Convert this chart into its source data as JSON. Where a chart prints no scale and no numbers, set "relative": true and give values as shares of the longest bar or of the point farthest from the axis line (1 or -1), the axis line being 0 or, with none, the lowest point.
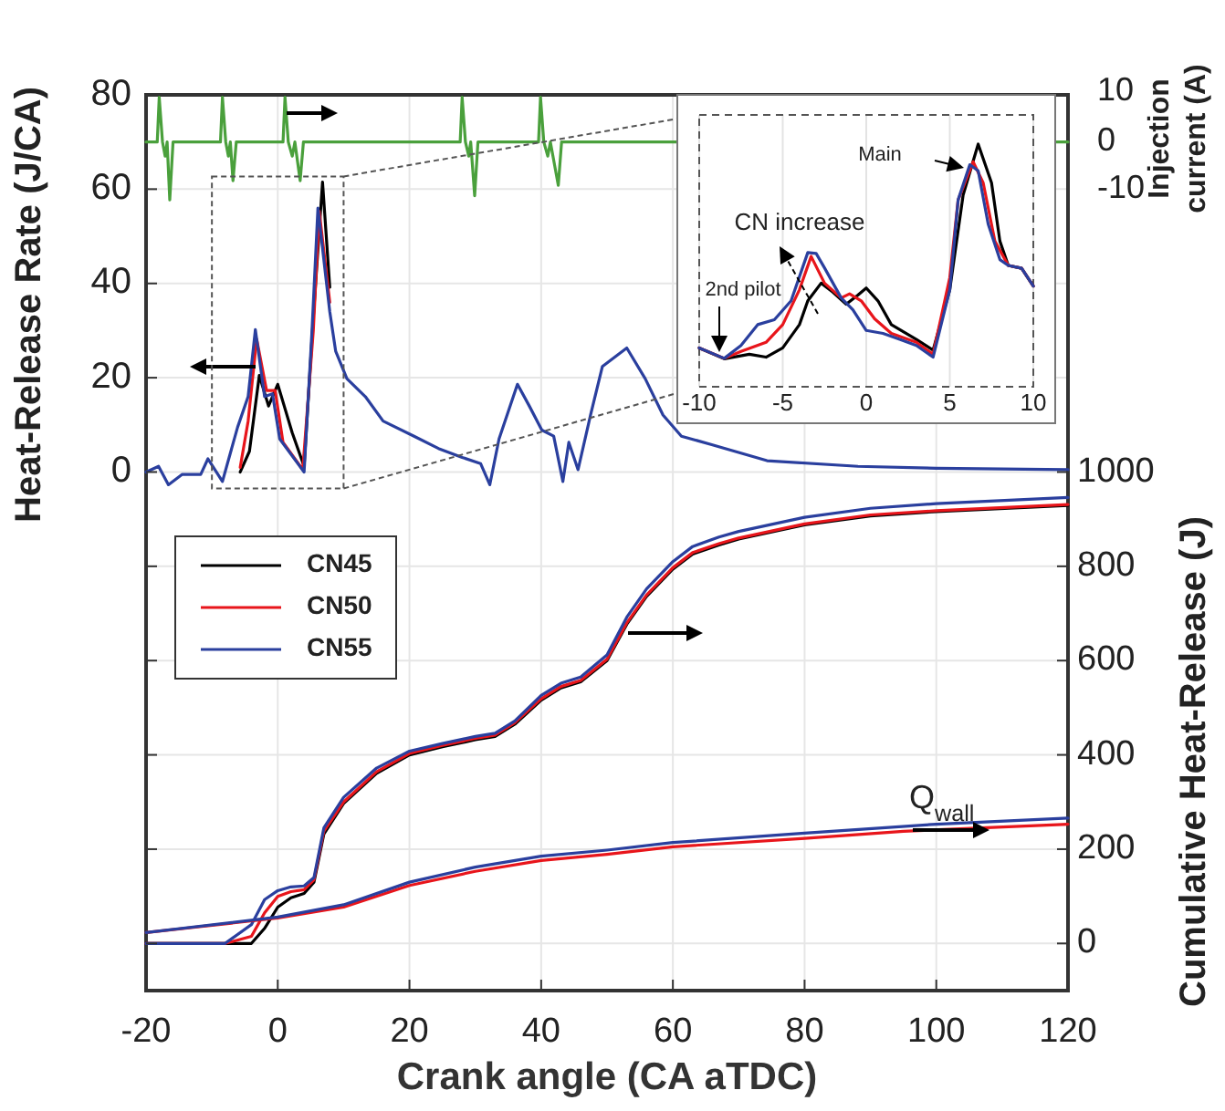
{
  "chart_data": [
    {
      "type": "line",
      "xlabel": "Crank angle (CA aTDC)",
      "ylabel": "Heat-Release Rate (J/CA)",
      "y2label": "Cumulative Heat-Release (J)",
      "y3label": "Injection current (A)",
      "xlim": [
        -20,
        120
      ],
      "xticks": [
        -20,
        0,
        20,
        40,
        60,
        80,
        100,
        120
      ],
      "ylim": [
        -110,
        80
      ],
      "yticks": [
        {
          "value": -100,
          "label": null
        },
        {
          "value": -80,
          "label": null
        },
        {
          "value": -60,
          "label": null
        },
        {
          "value": -40,
          "label": null
        },
        {
          "value": -20,
          "label": null
        },
        0,
        20,
        40,
        60,
        80
      ],
      "y2lim": [
        -100,
        1800
      ],
      "y2ticks": [
        0,
        200,
        400,
        600,
        800,
        1000
      ],
      "y3lim": [
        -180,
        10
      ],
      "y3ticks": [
        10,
        0,
        -10
      ],
      "grid": true,
      "legend": "left",
      "annotations": [
        "Q$_{wall}$"
      ],
      "series": [
        {
          "name": "CN45",
          "color": "#000000",
          "x": [
            -5.7,
            -4.3,
            -2.8,
            -1.4,
            0,
            2.2,
            4.0,
            5.4,
            6.8,
            7.9
          ],
          "values": [
            0,
            4.4,
            20.5,
            14,
            18.6,
            8.3,
            1.2,
            32.8,
            61.5,
            39.2
          ]
        },
        {
          "name": "CN50",
          "color": "#e8151b",
          "x": [
            -5.7,
            -4.5,
            -3.2,
            -1.7,
            -0.4,
            0.8,
            3.8,
            5.4,
            6.3,
            7.9
          ],
          "values": [
            1,
            10.8,
            28.2,
            17.3,
            17.3,
            6.3,
            0.5,
            30,
            55.3,
            36
          ]
        },
        {
          "name": "CN55",
          "color": "#2a3f9e",
          "x": [
            -20,
            -18.1,
            -16.6,
            -14.5,
            -11.7,
            -10.6,
            -8.4,
            -6.1,
            -4.5,
            -3.4,
            -2.0,
            -0.8,
            0.3,
            4.0,
            5.2,
            6.1,
            7.9,
            8.8,
            10.5,
            13.3,
            16,
            20.7,
            24.4,
            28,
            30.8,
            32.2,
            33.6,
            36.4,
            38.2,
            40.1,
            41.9,
            43.3,
            44.2,
            45.6,
            47.5,
            49.3,
            53,
            55.8,
            58.5,
            61.3,
            65.9,
            74.3,
            88.1,
            100,
            120
          ],
          "values": [
            0,
            1.2,
            -2.7,
            -0.5,
            -0.5,
            2.8,
            -2,
            9.5,
            16,
            30.2,
            16,
            16.6,
            7,
            0,
            30,
            56,
            34,
            25.6,
            19.8,
            16,
            10.8,
            7.6,
            5,
            3.1,
            1.8,
            -2.7,
            7,
            18.6,
            14,
            8.9,
            7.6,
            -2,
            6.3,
            0.5,
            12.1,
            22.4,
            26.3,
            19.8,
            12.1,
            7.6,
            5.8,
            2.4,
            1.2,
            0.8,
            0.5
          ]
        },
        {
          "color": "#000000",
          "axis": "y2",
          "x": [
            -20,
            -8,
            -4,
            -2,
            0,
            2,
            4,
            5.5,
            7,
            10,
            15,
            20,
            25,
            30,
            33,
            36,
            40,
            43,
            46,
            50,
            53,
            56,
            60,
            63,
            67,
            70,
            80,
            90,
            100,
            120
          ],
          "values": [
            0,
            0,
            0,
            32,
            77,
            97,
            106,
            130,
            232,
            297,
            361,
            400,
            417,
            432,
            439,
            465,
            516,
            542,
            555,
            600,
            677,
            736,
            794,
            826,
            845,
            858,
            888,
            907,
            916,
            929
          ]
        },
        {
          "color": "#e8151b",
          "axis": "y2",
          "x": [
            -20,
            -8,
            -4,
            -2,
            0,
            2,
            4,
            5.5,
            7,
            10,
            15,
            20,
            25,
            30,
            33,
            36,
            40,
            43,
            46,
            50,
            53,
            56,
            60,
            63,
            67,
            70,
            80,
            90,
            100,
            120
          ],
          "values": [
            0,
            0,
            15,
            65,
            100,
            110,
            114,
            135,
            238,
            300,
            364,
            403,
            420,
            435,
            442,
            468,
            519,
            545,
            558,
            603,
            680,
            739,
            797,
            829,
            848,
            860,
            890,
            909,
            918,
            931
          ]
        },
        {
          "color": "#2a3f9e",
          "axis": "y2",
          "x": [
            -20,
            -8,
            -4,
            -2,
            0,
            2,
            4,
            5.5,
            7,
            10,
            15,
            20,
            25,
            30,
            33,
            36,
            40,
            43,
            46,
            50,
            53,
            56,
            60,
            63,
            67,
            70,
            80,
            90,
            100,
            120
          ],
          "values": [
            0,
            0,
            40,
            93,
            112,
            120,
            122,
            140,
            245,
            310,
            372,
            408,
            424,
            439,
            446,
            472,
            526,
            552,
            565,
            612,
            692,
            752,
            810,
            842,
            862,
            874,
            904,
            923,
            933,
            946
          ]
        },
        {
          "color": "#e8151b",
          "axis": "y2",
          "x": [
            -20,
            0,
            10,
            20,
            30,
            40,
            50,
            60,
            80,
            95,
            120
          ],
          "values": [
            23,
            54,
            77,
            123,
            153,
            176,
            189,
            205,
            223,
            238,
            253
          ]
        },
        {
          "color": "#2a3f9e",
          "axis": "y2",
          "x": [
            -20,
            0,
            10,
            20,
            30,
            40,
            50,
            60,
            80,
            100,
            120
          ],
          "values": [
            23,
            56,
            82,
            130,
            162,
            185,
            198,
            214,
            234,
            253,
            266
          ]
        },
        {
          "color": "#4aa03c",
          "axis": "y3",
          "x": [
            -20,
            -18.3,
            -18,
            -17.5,
            -17.1,
            -16.8,
            -16.4,
            -15.9,
            -8.7,
            -8.4,
            -7.9,
            -7.5,
            -7.2,
            -6.8,
            -6.3,
            0.8,
            1.1,
            1.6,
            2.2,
            2.6,
            3.4,
            3.9,
            27.7,
            28,
            28.5,
            29,
            29.3,
            29.9,
            30.4,
            39.6,
            39.9,
            40.4,
            41,
            41.4,
            42.6,
            43.1,
            120
          ],
          "values": [
            0,
            0,
            9.5,
            0,
            -3,
            0,
            -12.3,
            0,
            0,
            9.5,
            0,
            -3,
            0,
            -8.2,
            0,
            0,
            9.5,
            0,
            -3,
            0,
            -8.2,
            0,
            0,
            9.5,
            0,
            -3,
            0,
            -11.4,
            0,
            0,
            9.5,
            0,
            -3,
            0,
            -9.2,
            0,
            0
          ]
        }
      ]
    },
    {
      "type": "line",
      "relative": true,
      "xlim": [
        -10,
        10
      ],
      "xticks": [
        -10,
        -5,
        0,
        5,
        10
      ],
      "grid": "x",
      "tick_labels": "x",
      "annotations": [
        "Main",
        "CN increase",
        "2nd pilot"
      ],
      "series": [
        {
          "color": "#000000",
          "x": [
            -10,
            -8.5,
            -7,
            -6,
            -5,
            -4,
            -3.5,
            -2.7,
            -2,
            -1.2,
            -0.5,
            0,
            0.7,
            1.5,
            3,
            4,
            5,
            5.8,
            6.7,
            7.5,
            8,
            8.5,
            9.3,
            10
          ],
          "values": [
            0.16,
            0.115,
            0.134,
            0.122,
            0.16,
            0.256,
            0.354,
            0.427,
            0.39,
            0.34,
            0.378,
            0.407,
            0.354,
            0.256,
            0.195,
            0.151,
            0.4,
            0.79,
            1,
            0.84,
            0.6,
            0.5,
            0.488,
            0.415
          ]
        },
        {
          "color": "#e8151b",
          "x": [
            -10,
            -8.5,
            -7.5,
            -6,
            -5,
            -4,
            -3.3,
            -2.5,
            -1.5,
            -1,
            -0.3,
            0.5,
            1.5,
            3,
            4,
            5,
            5.5,
            6.4,
            7,
            7.7,
            8.5,
            9.3,
            10
          ],
          "values": [
            0.16,
            0.117,
            0.146,
            0.183,
            0.256,
            0.4,
            0.537,
            0.427,
            0.366,
            0.383,
            0.354,
            0.28,
            0.22,
            0.183,
            0.134,
            0.45,
            0.77,
            0.927,
            0.84,
            0.6,
            0.5,
            0.488,
            0.415
          ]
        },
        {
          "color": "#2a3f9e",
          "x": [
            -10,
            -8.5,
            -7.5,
            -6.5,
            -5.5,
            -4.5,
            -3.5,
            -3,
            -2.5,
            -1.5,
            -0.8,
            0,
            1,
            2,
            3,
            4,
            5,
            5.5,
            6.2,
            6.7,
            7.3,
            8,
            8.5,
            9.3,
            10
          ],
          "values": [
            0.16,
            0.117,
            0.17,
            0.256,
            0.276,
            0.354,
            0.553,
            0.549,
            0.49,
            0.366,
            0.317,
            0.232,
            0.22,
            0.195,
            0.17,
            0.122,
            0.4,
            0.77,
            0.915,
            0.89,
            0.67,
            0.524,
            0.5,
            0.488,
            0.415
          ]
        }
      ]
    }
  ]
}
